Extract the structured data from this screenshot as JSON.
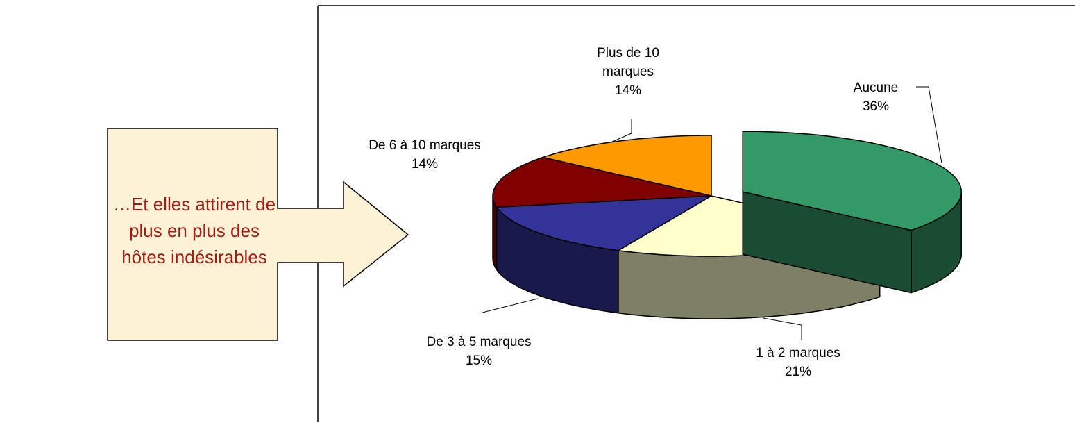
{
  "chart_data": {
    "type": "pie3d",
    "annotation": "…Et elles attirent de plus en plus des hôtes indésirables",
    "categories": [
      "Aucune",
      "1 à 2 marques",
      "De 3 à 5 marques",
      "De 6 à 10 marques",
      "Plus de 10 marques"
    ],
    "values": [
      36,
      21,
      15,
      14,
      14
    ],
    "value_labels": [
      "36%",
      "21%",
      "15%",
      "14%",
      "14%"
    ],
    "colors": [
      "#339966",
      "#ffffcc",
      "#333399",
      "#800000",
      "#ff9900"
    ],
    "exploded": [
      true,
      false,
      false,
      false,
      false
    ]
  }
}
